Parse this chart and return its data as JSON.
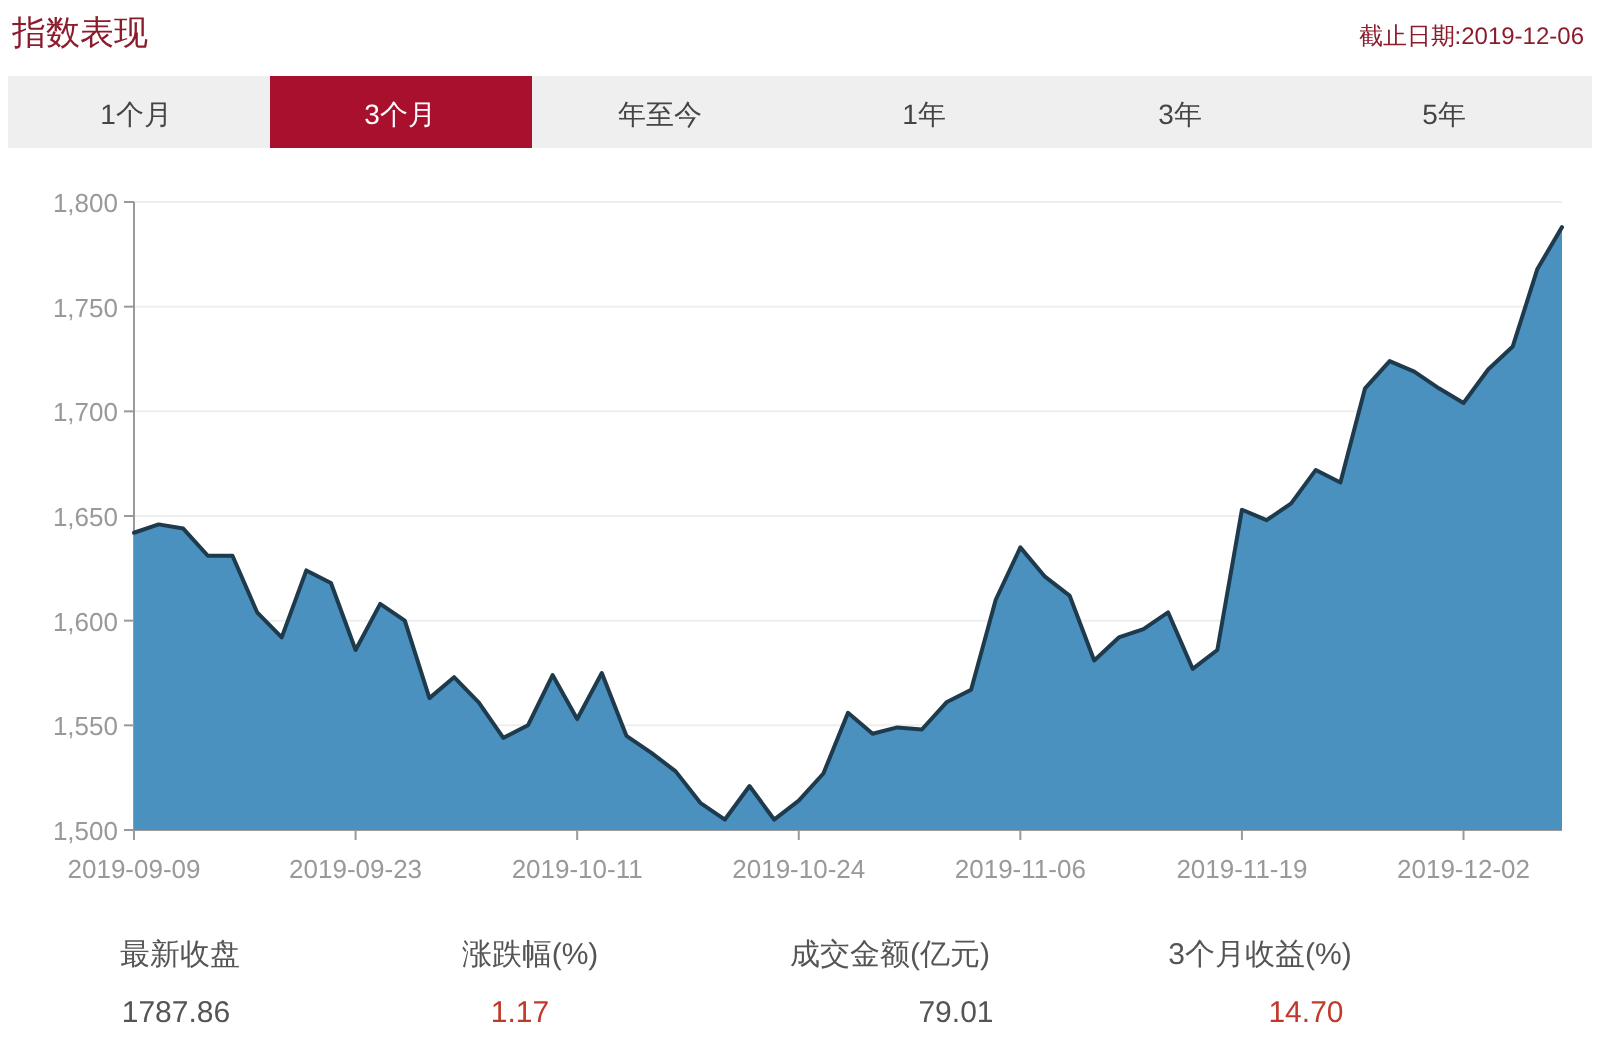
{
  "chart_data": {
    "type": "area",
    "title": "指数表现",
    "subtitle": "截止日期:2019-12-06",
    "annotations": [
      "1个月",
      "3个月",
      "年至今",
      "1年",
      "3年",
      "5年",
      "最新收盘",
      "涨跌幅(%)",
      "成交金额(亿元)",
      "3个月收益(%)",
      "1787.86",
      "1.17",
      "79.01",
      "14.70"
    ],
    "categories": [
      "2019-09-09",
      null,
      null,
      null,
      null,
      null,
      null,
      null,
      null,
      "2019-09-23",
      null,
      null,
      null,
      null,
      null,
      null,
      null,
      null,
      "2019-10-11",
      null,
      null,
      null,
      null,
      null,
      null,
      null,
      null,
      "2019-10-24",
      null,
      null,
      null,
      null,
      null,
      null,
      null,
      null,
      "2019-11-06",
      null,
      null,
      null,
      null,
      null,
      null,
      null,
      null,
      "2019-11-19",
      null,
      null,
      null,
      null,
      null,
      null,
      null,
      null,
      "2019-12-02",
      null,
      null,
      null,
      null
    ],
    "series": [
      {
        "color": "#4b91c0",
        "values": [
          1642,
          1646,
          1644,
          1631,
          1631,
          1604,
          1592,
          1624,
          1618,
          1586,
          1608,
          1600,
          1563,
          1573,
          1561,
          1544,
          1550,
          1574,
          1553,
          1575,
          1545,
          1537,
          1528,
          1513,
          1505,
          1521,
          1505,
          1514,
          1527,
          1556,
          1546,
          1549,
          1548,
          1561,
          1567,
          1610,
          1635,
          1621,
          1612,
          1581,
          1592,
          1596,
          1604,
          1577,
          1586,
          1653,
          1648,
          1656,
          1672,
          1666,
          1711,
          1724,
          1719,
          1711,
          1704,
          1720,
          1731,
          1768,
          1788
        ]
      }
    ],
    "ylim": [
      1500,
      1800
    ],
    "yticks": [
      {
        "value": 1500,
        "label": "1,500"
      },
      {
        "value": 1550,
        "label": "1,550"
      },
      {
        "value": 1600,
        "label": "1,600"
      },
      {
        "value": 1650,
        "label": "1,650"
      },
      {
        "value": 1700,
        "label": "1,700"
      },
      {
        "value": 1750,
        "label": "1,750"
      },
      {
        "value": 1800,
        "label": "1,800"
      }
    ],
    "grid": "y"
  }
}
